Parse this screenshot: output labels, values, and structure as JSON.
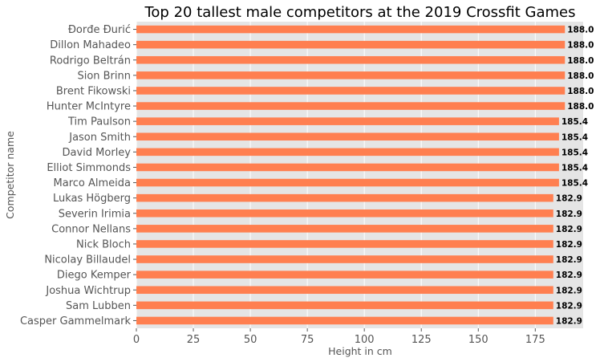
{
  "chart_data": {
    "type": "bar",
    "orientation": "horizontal",
    "title": "Top 20 tallest male competitors at the 2019 Crossfit Games",
    "xlabel": "Height in cm",
    "ylabel": "Competitor name",
    "xlim": [
      0,
      196
    ],
    "xticks": [
      0,
      25,
      50,
      75,
      100,
      125,
      150,
      175
    ],
    "grid": true,
    "bar_color": "#ff7f50",
    "background_color": "#e5e5e5",
    "categories": [
      "Đorđe Đurić",
      "Dillon Mahadeo",
      "Rodrigo Beltrán",
      "Sion Brinn",
      "Brent Fikowski",
      "Hunter McIntyre",
      "Tim Paulson",
      "Jason Smith",
      "David Morley",
      "Elliot Simmonds",
      "Marco Almeida",
      "Lukas Högberg",
      "Severin Irimia",
      "Connor Nellans",
      "Nick Bloch",
      "Nicolay Billaudel",
      "Diego Kemper",
      "Joshua Wichtrup",
      "Sam Lubben",
      "Casper Gammelmark"
    ],
    "values": [
      188.0,
      188.0,
      188.0,
      188.0,
      188.0,
      188.0,
      185.4,
      185.4,
      185.4,
      185.4,
      185.4,
      182.9,
      182.9,
      182.9,
      182.9,
      182.9,
      182.9,
      182.9,
      182.9,
      182.9
    ],
    "value_labels": [
      "188.0",
      "188.0",
      "188.0",
      "188.0",
      "188.0",
      "188.0",
      "185.4",
      "185.4",
      "185.4",
      "185.4",
      "185.4",
      "182.9",
      "182.9",
      "182.9",
      "182.9",
      "182.9",
      "182.9",
      "182.9",
      "182.9",
      "182.9"
    ]
  }
}
